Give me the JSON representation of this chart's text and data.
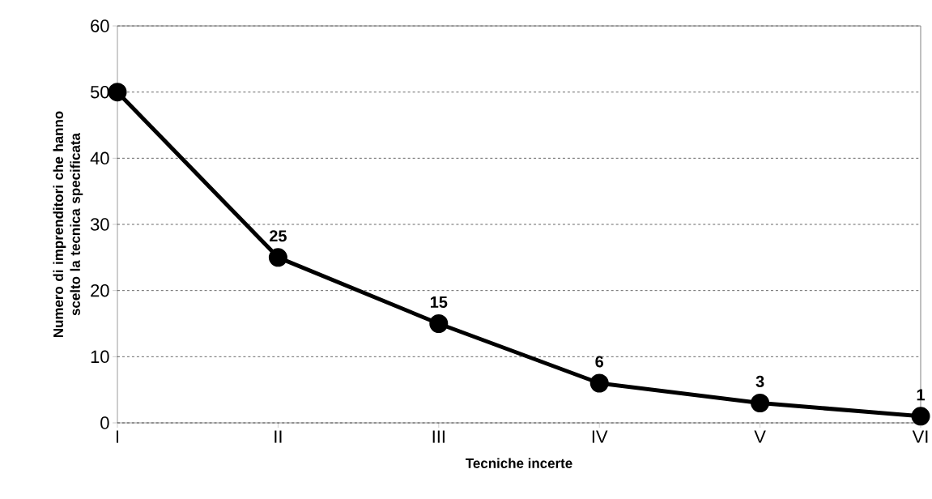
{
  "chart_data": {
    "type": "line",
    "xlabel": "Tecniche incerte",
    "ylabel": "Numero di imprenditori che hanno scelto la tecnica specificata",
    "categories": [
      "I",
      "II",
      "III",
      "IV",
      "V",
      "VI"
    ],
    "values": [
      50,
      25,
      15,
      6,
      3,
      1
    ],
    "value_labels": [
      null,
      "25",
      "15",
      "6",
      "3",
      "1"
    ],
    "color": "#000000",
    "ylim": [
      0,
      60
    ],
    "yticks": [
      0,
      10,
      20,
      30,
      40,
      50,
      60
    ],
    "grid": "y",
    "marker": "circle",
    "line_style": "solid"
  }
}
